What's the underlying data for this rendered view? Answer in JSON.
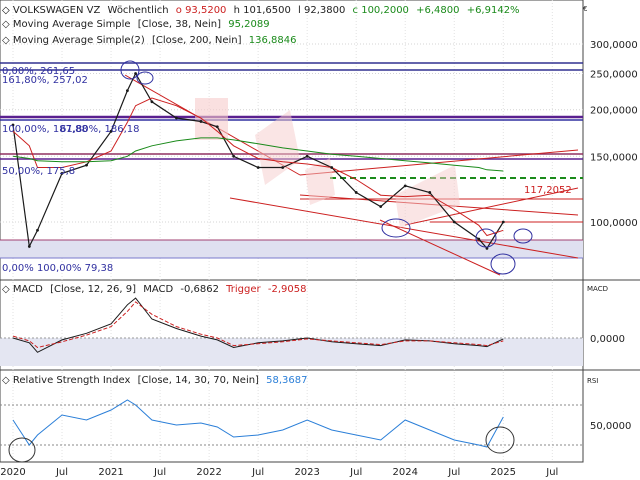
{
  "header": {
    "symbol": "VOLKSWAGEN VZ",
    "period": "Wöchentlich",
    "open": "o 93,5200",
    "high": "h 101,6500",
    "low": "l 92,3800",
    "close": "c 100,2000",
    "change": "+6,4800",
    "change_pct": "+6,9142%",
    "currency": "€"
  },
  "indicators": {
    "ma1": {
      "label": "Moving Average Simple",
      "params": "[Close, 38, Nein]",
      "value": "95,2089"
    },
    "ma2": {
      "label": "Moving Average Simple(2)",
      "params": "[Close, 200, Nein]",
      "value": "136,8846"
    }
  },
  "annotations": {
    "fib_top": "0,00%, 261,65",
    "fib_top2": "161,80%, 257,02",
    "fib_mid1": "100,00%, 187,88",
    "fib_mid2": "61,80%, 186,18",
    "fib_mid3": "50,00%, 175,8",
    "fib_bottom": "0,00% 100,00% 79,38",
    "price_tag": "117,2052"
  },
  "macd": {
    "label": "MACD",
    "params": "[Close, 12, 26, 9]",
    "name": "MACD",
    "value": "-0,6862",
    "trigger_label": "Trigger",
    "trigger_value": "-2,9058",
    "axis_tag": "MACD",
    "tick": "0,0000"
  },
  "rsi": {
    "label": "Relative Strength Index",
    "params": "[Close, 14, 30, 70, Nein]",
    "value": "58,3687",
    "axis_tag": "RSI",
    "tick": "50,0000"
  },
  "chart_data": {
    "type": "line",
    "title": "VOLKSWAGEN VZ",
    "x_ticks": [
      "2020",
      "Jul",
      "2021",
      "Jul",
      "2022",
      "Jul",
      "2023",
      "Jul",
      "2024",
      "Jul",
      "2025",
      "Jul"
    ],
    "y_ticks": [
      "300,0000",
      "250,0000",
      "200,0000",
      "150,0000",
      "100,0000"
    ],
    "y_tick_values": [
      300,
      250,
      200,
      150,
      100
    ],
    "y_scale": "log",
    "x": [
      "2020-01",
      "2020-03",
      "2020-04",
      "2020-07",
      "2020-10",
      "2021-01",
      "2021-03",
      "2021-04",
      "2021-06",
      "2021-09",
      "2021-12",
      "2022-02",
      "2022-04",
      "2022-07",
      "2022-10",
      "2023-01",
      "2023-04",
      "2023-07",
      "2023-10",
      "2024-01",
      "2024-04",
      "2024-07",
      "2024-10",
      "2024-11",
      "2025-01"
    ],
    "series": [
      {
        "values": [
          182,
          86,
          95,
          135,
          142,
          175,
          225,
          250,
          210,
          190,
          186,
          180,
          150,
          140,
          140,
          150,
          140,
          120,
          110,
          125,
          120,
          100,
          90,
          85,
          100
        ]
      },
      {
        "name": "Moving Average Simple",
        "values": [
          175,
          160,
          140,
          140,
          145,
          155,
          185,
          205,
          215,
          205,
          190,
          175,
          160,
          148,
          145,
          143,
          140,
          130,
          118,
          117,
          118,
          108,
          98,
          92,
          95
        ]
      },
      {
        "name": "Moving Average Simple(2)",
        "values": [
          150,
          148,
          146,
          145,
          145,
          146,
          150,
          155,
          160,
          165,
          168,
          168,
          166,
          162,
          158,
          155,
          152,
          150,
          148,
          146,
          144,
          142,
          140,
          138,
          137
        ]
      }
    ],
    "macd_values": [
      0,
      -5,
      -15,
      -2,
      5,
      15,
      35,
      42,
      20,
      10,
      2,
      -2,
      -10,
      -5,
      -3,
      0,
      -4,
      -6,
      -8,
      -2,
      -3,
      -6,
      -8,
      -9,
      -1
    ],
    "trigger_values": [
      2,
      -3,
      -10,
      -4,
      3,
      12,
      28,
      38,
      25,
      12,
      4,
      0,
      -8,
      -6,
      -4,
      -1,
      -3,
      -5,
      -7,
      -3,
      -3,
      -5,
      -7,
      -8,
      -3
    ],
    "rsi_values": [
      55,
      30,
      40,
      60,
      55,
      65,
      75,
      70,
      55,
      50,
      52,
      48,
      38,
      40,
      45,
      55,
      45,
      40,
      35,
      55,
      45,
      35,
      30,
      28,
      58
    ],
    "rsi_ticks": [
      "50,0000"
    ],
    "macd_ticks": [
      "0,0000"
    ]
  }
}
